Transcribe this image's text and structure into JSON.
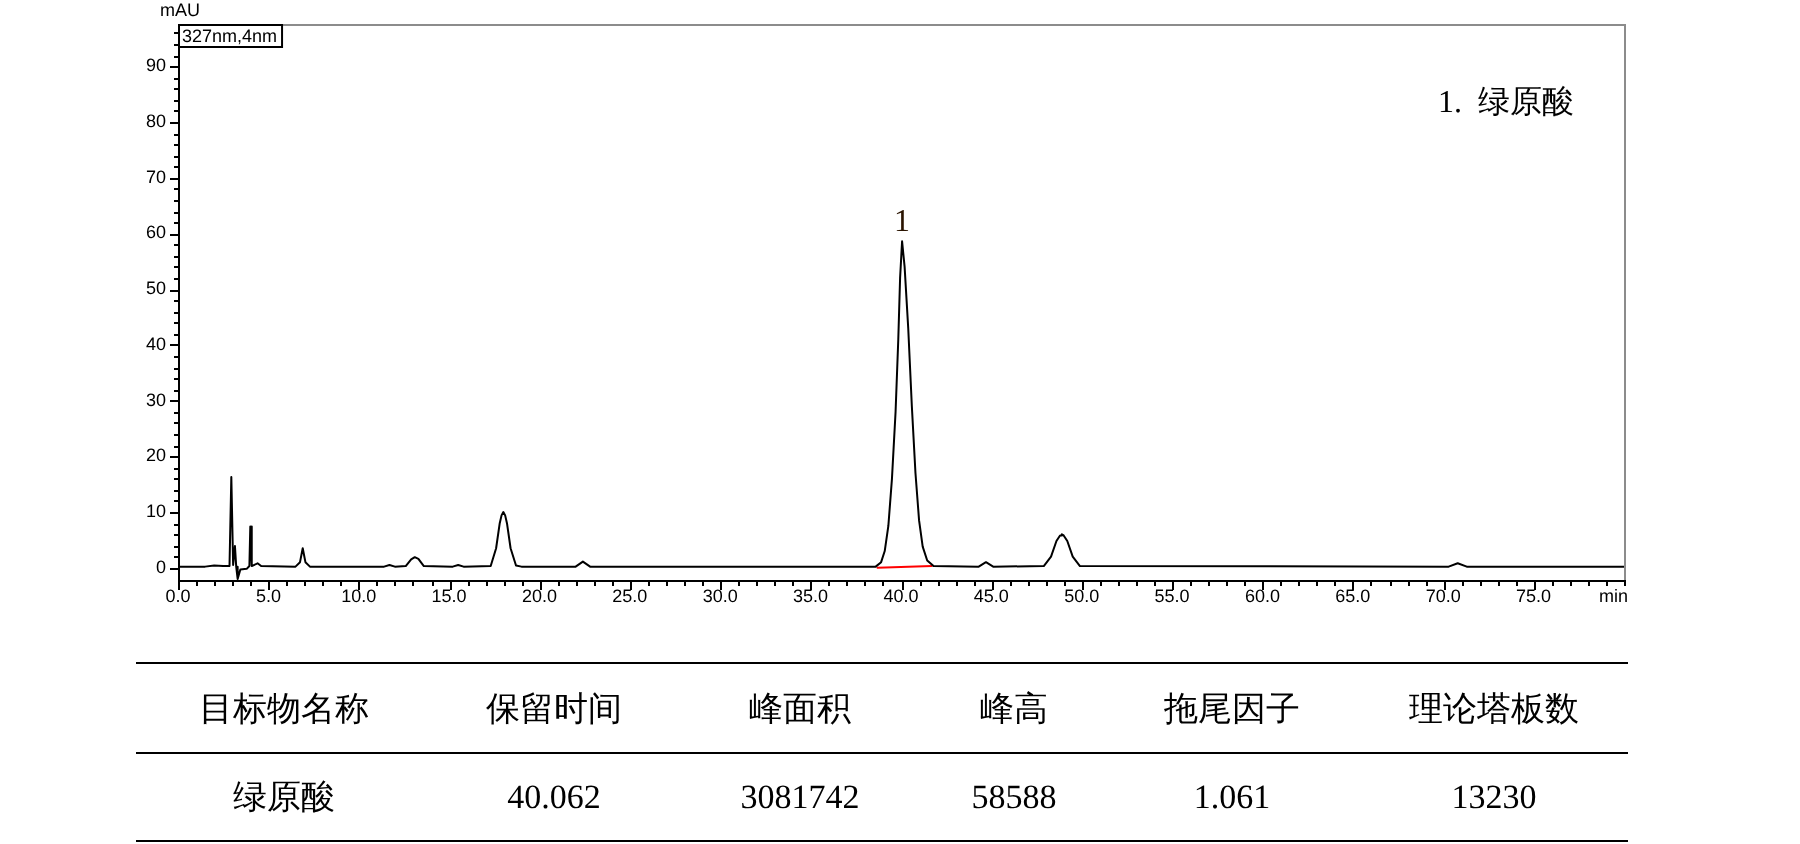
{
  "chart_data": {
    "type": "line",
    "xlabel": "min",
    "ylabel": "mAU",
    "xlim": [
      0,
      80
    ],
    "ylim": [
      -2.2,
      97.6
    ],
    "xticks": [
      {
        "value": 0,
        "label": "0.0"
      },
      {
        "value": 1,
        "label": null
      },
      {
        "value": 2,
        "label": null
      },
      {
        "value": 3,
        "label": null
      },
      {
        "value": 4,
        "label": null
      },
      {
        "value": 5,
        "label": "5.0"
      },
      {
        "value": 6,
        "label": null
      },
      {
        "value": 7,
        "label": null
      },
      {
        "value": 8,
        "label": null
      },
      {
        "value": 9,
        "label": null
      },
      {
        "value": 10,
        "label": "10.0"
      },
      {
        "value": 11,
        "label": null
      },
      {
        "value": 12,
        "label": null
      },
      {
        "value": 13,
        "label": null
      },
      {
        "value": 14,
        "label": null
      },
      {
        "value": 15,
        "label": "15.0"
      },
      {
        "value": 16,
        "label": null
      },
      {
        "value": 17,
        "label": null
      },
      {
        "value": 18,
        "label": null
      },
      {
        "value": 19,
        "label": null
      },
      {
        "value": 20,
        "label": "20.0"
      },
      {
        "value": 21,
        "label": null
      },
      {
        "value": 22,
        "label": null
      },
      {
        "value": 23,
        "label": null
      },
      {
        "value": 24,
        "label": null
      },
      {
        "value": 25,
        "label": "25.0"
      },
      {
        "value": 26,
        "label": null
      },
      {
        "value": 27,
        "label": null
      },
      {
        "value": 28,
        "label": null
      },
      {
        "value": 29,
        "label": null
      },
      {
        "value": 30,
        "label": "30.0"
      },
      {
        "value": 31,
        "label": null
      },
      {
        "value": 32,
        "label": null
      },
      {
        "value": 33,
        "label": null
      },
      {
        "value": 34,
        "label": null
      },
      {
        "value": 35,
        "label": "35.0"
      },
      {
        "value": 36,
        "label": null
      },
      {
        "value": 37,
        "label": null
      },
      {
        "value": 38,
        "label": null
      },
      {
        "value": 39,
        "label": null
      },
      {
        "value": 40,
        "label": "40.0"
      },
      {
        "value": 41,
        "label": null
      },
      {
        "value": 42,
        "label": null
      },
      {
        "value": 43,
        "label": null
      },
      {
        "value": 44,
        "label": null
      },
      {
        "value": 45,
        "label": "45.0"
      },
      {
        "value": 46,
        "label": null
      },
      {
        "value": 47,
        "label": null
      },
      {
        "value": 48,
        "label": null
      },
      {
        "value": 49,
        "label": null
      },
      {
        "value": 50,
        "label": "50.0"
      },
      {
        "value": 51,
        "label": null
      },
      {
        "value": 52,
        "label": null
      },
      {
        "value": 53,
        "label": null
      },
      {
        "value": 54,
        "label": null
      },
      {
        "value": 55,
        "label": "55.0"
      },
      {
        "value": 56,
        "label": null
      },
      {
        "value": 57,
        "label": null
      },
      {
        "value": 58,
        "label": null
      },
      {
        "value": 59,
        "label": null
      },
      {
        "value": 60,
        "label": "60.0"
      },
      {
        "value": 61,
        "label": null
      },
      {
        "value": 62,
        "label": null
      },
      {
        "value": 63,
        "label": null
      },
      {
        "value": 64,
        "label": null
      },
      {
        "value": 65,
        "label": "65.0"
      },
      {
        "value": 66,
        "label": null
      },
      {
        "value": 67,
        "label": null
      },
      {
        "value": 68,
        "label": null
      },
      {
        "value": 69,
        "label": null
      },
      {
        "value": 70,
        "label": "70.0"
      },
      {
        "value": 71,
        "label": null
      },
      {
        "value": 72,
        "label": null
      },
      {
        "value": 73,
        "label": null
      },
      {
        "value": 74,
        "label": null
      },
      {
        "value": 75,
        "label": "75.0"
      },
      {
        "value": 76,
        "label": null
      },
      {
        "value": 77,
        "label": null
      },
      {
        "value": 78,
        "label": null
      },
      {
        "value": 79,
        "label": null
      },
      {
        "value": 80,
        "label": null
      }
    ],
    "yticks": [
      0,
      {
        "value": 2,
        "label": null
      },
      {
        "value": 4,
        "label": null
      },
      {
        "value": 6,
        "label": null
      },
      {
        "value": 8,
        "label": null
      },
      10,
      {
        "value": 12,
        "label": null
      },
      {
        "value": 14,
        "label": null
      },
      {
        "value": 16,
        "label": null
      },
      {
        "value": 18,
        "label": null
      },
      20,
      {
        "value": 22,
        "label": null
      },
      {
        "value": 24,
        "label": null
      },
      {
        "value": 26,
        "label": null
      },
      {
        "value": 28,
        "label": null
      },
      30,
      {
        "value": 32,
        "label": null
      },
      {
        "value": 34,
        "label": null
      },
      {
        "value": 36,
        "label": null
      },
      {
        "value": 38,
        "label": null
      },
      40,
      {
        "value": 42,
        "label": null
      },
      {
        "value": 44,
        "label": null
      },
      {
        "value": 46,
        "label": null
      },
      {
        "value": 48,
        "label": null
      },
      50,
      {
        "value": 52,
        "label": null
      },
      {
        "value": 54,
        "label": null
      },
      {
        "value": 56,
        "label": null
      },
      {
        "value": 58,
        "label": null
      },
      60,
      {
        "value": 62,
        "label": null
      },
      {
        "value": 64,
        "label": null
      },
      {
        "value": 66,
        "label": null
      },
      {
        "value": 68,
        "label": null
      },
      70,
      {
        "value": 72,
        "label": null
      },
      {
        "value": 74,
        "label": null
      },
      {
        "value": 76,
        "label": null
      },
      {
        "value": 78,
        "label": null
      },
      80,
      {
        "value": 82,
        "label": null
      },
      {
        "value": 84,
        "label": null
      },
      {
        "value": 86,
        "label": null
      },
      {
        "value": 88,
        "label": null
      },
      90,
      {
        "value": 92,
        "label": null
      },
      {
        "value": 94,
        "label": null
      },
      {
        "value": 96,
        "label": null
      }
    ],
    "grid": false,
    "legend": false,
    "marker": "none",
    "line_style": "solid",
    "series": [
      {
        "color": "#000000",
        "x": [
          0,
          1.5,
          2.0,
          2.5,
          2.85,
          2.95,
          3.05,
          3.15,
          3.22,
          3.3,
          3.45,
          3.8,
          3.95,
          4.0,
          4.08,
          4.4,
          4.6,
          6.5,
          6.75,
          6.9,
          7.05,
          7.3,
          11.4,
          11.7,
          12.0,
          12.6,
          12.9,
          13.1,
          13.3,
          13.6,
          15.2,
          15.5,
          15.8,
          17.3,
          17.6,
          17.8,
          17.9,
          18.0,
          18.1,
          18.2,
          18.4,
          18.7,
          19.0,
          22.0,
          22.4,
          22.8,
          38.6,
          38.9,
          39.1,
          39.3,
          39.5,
          39.7,
          39.85,
          39.95,
          40.06,
          40.2,
          40.4,
          40.6,
          40.8,
          41.0,
          41.2,
          41.45,
          41.8,
          44.3,
          44.7,
          45.1,
          47.9,
          48.3,
          48.6,
          48.8,
          48.9,
          49.0,
          49.2,
          49.5,
          49.9,
          70.3,
          70.8,
          71.3,
          80
        ],
        "values": [
          0.2,
          0.2,
          0.4,
          0.3,
          0.3,
          16.3,
          0.5,
          3.9,
          0.2,
          -2.0,
          -0.3,
          -0.2,
          0.3,
          7.4,
          0.3,
          0.8,
          0.3,
          0.2,
          1.0,
          3.5,
          1.0,
          0.2,
          0.2,
          0.5,
          0.2,
          0.3,
          1.5,
          1.9,
          1.6,
          0.3,
          0.2,
          0.5,
          0.2,
          0.3,
          3.5,
          8.0,
          9.4,
          10.0,
          9.4,
          8.0,
          3.5,
          0.4,
          0.2,
          0.2,
          1.1,
          0.2,
          0.2,
          1.0,
          3.0,
          7.5,
          16.0,
          28.0,
          41.0,
          52.0,
          58.6,
          54.0,
          43.0,
          29.0,
          17.0,
          8.5,
          3.8,
          1.3,
          0.3,
          0.2,
          1.0,
          0.2,
          0.3,
          2.0,
          4.8,
          5.8,
          6.0,
          5.8,
          4.8,
          2.0,
          0.3,
          0.2,
          0.8,
          0.2,
          0.2
        ]
      },
      {
        "color": "#ff0000",
        "x": [
          38.7,
          41.7
        ],
        "values": [
          0,
          0.3
        ]
      }
    ],
    "annotations": [
      "327nm,4nm",
      "1.  绿原酸",
      {
        "text": "1",
        "x": 40.062,
        "y": 58.6
      },
      "目标物名称",
      "保留时间",
      "峰面积",
      "峰高",
      "拖尾因子",
      "理论塔板数",
      "绿原酸",
      "40.062",
      "3081742",
      "58588",
      "1.061",
      "13230"
    ]
  }
}
